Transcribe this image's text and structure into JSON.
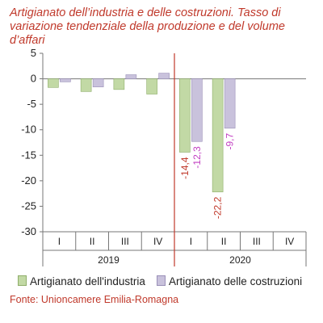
{
  "title": "Artigianato dell’industria e delle costruzioni. Tasso di variazione tendenziale della produzione e del volume d’affari",
  "source": "Fonte: Unioncamere Emilia-Romagna",
  "colors": {
    "series_1": "#c2d9a5",
    "series_1_stroke": "#8fae6a",
    "series_2": "#c9c2dc",
    "series_2_stroke": "#9a90b8",
    "accent": "#c0392b",
    "label_series_1": "#c0392b",
    "label_series_2": "#c23fc2"
  },
  "chart_data": {
    "type": "bar",
    "title": "Artigianato dell’industria e delle costruzioni. Tasso di variazione tendenziale della produzione e del volume d’affari",
    "categories": [
      "I",
      "II",
      "III",
      "IV",
      "I",
      "II",
      "III",
      "IV"
    ],
    "groups": [
      {
        "label": "2019",
        "categories": [
          "I",
          "II",
          "III",
          "IV"
        ]
      },
      {
        "label": "2020",
        "categories": [
          "I",
          "II",
          "III",
          "IV"
        ]
      }
    ],
    "series": [
      {
        "name": "Artigianato dell'industria",
        "values": [
          -1.7,
          -2.5,
          -2.1,
          -3.0,
          -14.4,
          -22.2,
          null,
          null
        ]
      },
      {
        "name": "Artigianato delle costruzioni",
        "values": [
          -0.6,
          -1.6,
          0.8,
          1.1,
          -12.3,
          -9.7,
          null,
          null
        ]
      }
    ],
    "data_labels": [
      {
        "series": 0,
        "index": 4,
        "text": "-14,4"
      },
      {
        "series": 1,
        "index": 4,
        "text": "-12,3"
      },
      {
        "series": 0,
        "index": 5,
        "text": "-22,2"
      },
      {
        "series": 1,
        "index": 5,
        "text": "-9,7"
      }
    ],
    "ylim": [
      -30,
      5
    ],
    "yticks": [
      5,
      0,
      -5,
      -10,
      -15,
      -20,
      -25,
      -30
    ],
    "grid": false,
    "legend": "bottom",
    "divider_after_index": 3
  }
}
